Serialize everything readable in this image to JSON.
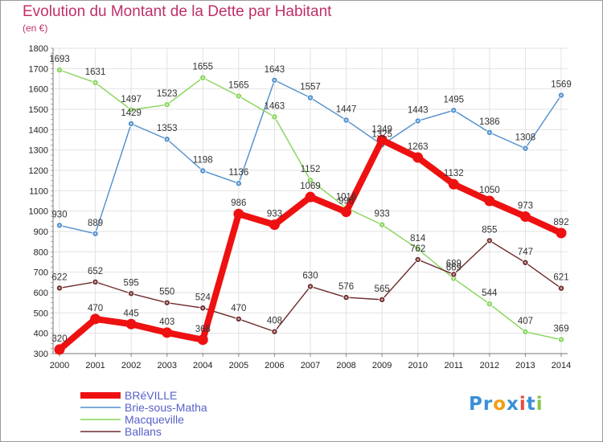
{
  "title": "Evolution du Montant de la Dette par Habitant",
  "subtitle": "(en €)",
  "logo": {
    "text": "Proxiti",
    "letters": [
      "P",
      "r",
      "o",
      "x",
      "i",
      "t",
      "i"
    ],
    "colors": [
      "#3a8fd8",
      "#3a8fd8",
      "#f39c12",
      "#3a8fd8",
      "#e74c3c",
      "#3a8fd8",
      "#8bc34a"
    ]
  },
  "chart_data": {
    "type": "line",
    "x": [
      2000,
      2001,
      2002,
      2003,
      2004,
      2005,
      2006,
      2007,
      2008,
      2009,
      2010,
      2011,
      2012,
      2013,
      2014
    ],
    "ylim": [
      300,
      1800
    ],
    "yticks": [
      300,
      400,
      500,
      600,
      700,
      800,
      900,
      1000,
      1100,
      1200,
      1300,
      1400,
      1500,
      1600,
      1700,
      1800
    ],
    "grid": true,
    "legend_position": "bottom-left",
    "series": [
      {
        "name": "BRéVILLE",
        "color": "#ee1111",
        "width": "thick",
        "values": [
          320,
          470,
          445,
          403,
          368,
          986,
          933,
          1069,
          996,
          1349,
          1263,
          1132,
          1050,
          973,
          892
        ]
      },
      {
        "name": "Brie-sous-Matha",
        "color": "#4f8fcc",
        "width": "thin",
        "values": [
          930,
          889,
          1429,
          1353,
          1198,
          1136,
          1643,
          1557,
          1447,
          1325,
          1443,
          1495,
          1386,
          1308,
          1569
        ]
      },
      {
        "name": "Macqueville",
        "color": "#86d45a",
        "width": "thin",
        "values": [
          1693,
          1631,
          1497,
          1523,
          1655,
          1565,
          1463,
          1152,
          1016,
          933,
          814,
          669,
          544,
          407,
          369
        ]
      },
      {
        "name": "Ballans",
        "color": "#6e2a2a",
        "width": "thin",
        "values": [
          622,
          652,
          595,
          550,
          524,
          470,
          408,
          630,
          576,
          565,
          762,
          689,
          855,
          747,
          621
        ]
      }
    ]
  }
}
